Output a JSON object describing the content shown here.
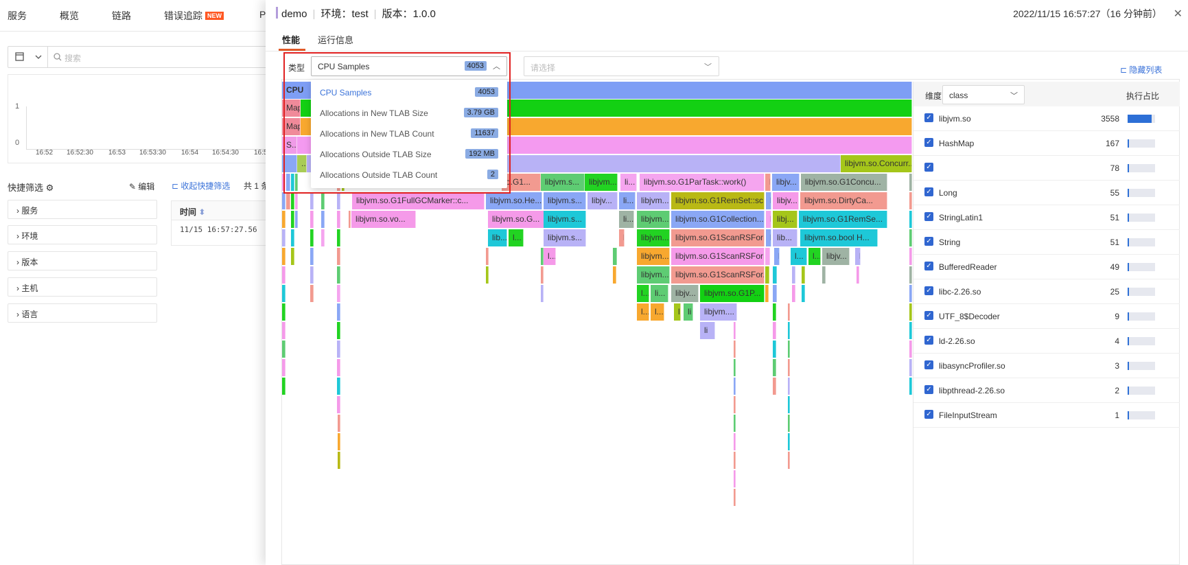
{
  "background": {
    "nav": [
      {
        "label": "服务"
      },
      {
        "label": "概览"
      },
      {
        "label": "链路"
      },
      {
        "label": "错误追踪",
        "badge": "NEW"
      }
    ],
    "nav_cut": "P",
    "search_placeholder": "搜索",
    "chart": {
      "y_ticks": [
        "1",
        "0"
      ],
      "x_ticks": [
        "16:52",
        "16:52:30",
        "16:53",
        "16:53:30",
        "16:54",
        "16:54:30",
        "16:5"
      ]
    },
    "filter_title": "快捷筛选",
    "edit_label": "编辑",
    "collapse_label": "收起快捷筛选",
    "total_label": "共 1 条",
    "accordions": [
      "服务",
      "环境",
      "版本",
      "主机",
      "语言"
    ],
    "table": {
      "header": "时间",
      "row": "11/15 16:57:27.56"
    }
  },
  "drawer": {
    "title_app": "demo",
    "title_env": "环境：test",
    "title_version": "版本：1.0.0",
    "timestamp": "2022/11/15 16:57:27（16 分钟前）",
    "tabs": [
      {
        "label": "性能",
        "active": true
      },
      {
        "label": "运行信息",
        "active": false
      }
    ],
    "type_label": "类型",
    "type_value": "CPU Samples",
    "type_count": "4053",
    "second_placeholder": "请选择",
    "hide_list_label": "隐藏列表",
    "dropdown": [
      {
        "label": "CPU Samples",
        "value": "4053",
        "selected": true
      },
      {
        "label": "Allocations in New TLAB Size",
        "value": "3.79 GB",
        "selected": false
      },
      {
        "label": "Allocations in New TLAB Count",
        "value": "11637",
        "selected": false
      },
      {
        "label": "Allocations Outside TLAB Size",
        "value": "192 MB",
        "selected": false
      },
      {
        "label": "Allocations Outside TLAB Count",
        "value": "2",
        "selected": false
      }
    ],
    "flame_labels": {
      "root": "CPU",
      "r1": "MapRe",
      "r2": "MapRe",
      "r3": "S...",
      "r4": "...",
      "concurrent": "libjvm.so.Concurr...",
      "g1": "o.G1...",
      "s1": "libjvm.s...",
      "s2": "libjvm...",
      "li1": "li...",
      "partask": "libjvm.so.G1ParTask::work()",
      "l1": "l",
      "jv1": "libjv...",
      "concu": "libjvm.so.G1Concu...",
      "fullgc": "libjvm.so.G1FullGCMarker::c...",
      "he": "libjvm.so.He...",
      "s3": "libjvm.s...",
      "jv2": "libjv...",
      "li2": "li...",
      "jvm1": "libjvm...",
      "remset": "libjvm.so.G1RemSet::sc...",
      "l2": "l",
      "jv3": "libjv...",
      "dirty": "libjvm.so.DirtyCa...",
      "vo": "libjvm.so.vo...",
      "g2": "libjvm.so.G...",
      "s4": "libjvm.s...",
      "li3": "li...",
      "jvm2": "libjvm...",
      "collection": "libjvm.so.G1Collection...",
      "l3": "l",
      "lj": "libj...",
      "remse": "libjvm.so.G1RemSe...",
      "lib1": "lib...",
      "l4": "l...",
      "s5": "libjvm.s...",
      "l5": "l",
      "jvm3": "libjvm...",
      "scanrs1": "libjvm.so.G1ScanRSForR...",
      "l6": "l",
      "lib2": "lib...",
      "bool": "libjvm.so.bool H...",
      "l7": "l...",
      "jvm4": "libjvm...",
      "scanrs2": "libjvm.so.G1ScanRSForR...",
      "l8": "l",
      "l9": "l...",
      "lj2": "l...",
      "jv4": "libjv...",
      "l10": "l",
      "jvm5": "libjvm...",
      "scanrs3": "libjvm.so.G1ScanRSFor...",
      "l11": "l...",
      "li4": "li...",
      "jv5": "libjv...",
      "g1p": "libjvm.so.G1P...",
      "l12": "l...",
      "l13": "l...",
      "l14": "l",
      "l15": "li",
      "jvm6": "libjvm....",
      "l16": "li"
    },
    "dimension_label": "维度",
    "dimension_value": "class",
    "ratio_label": "执行占比",
    "classes": [
      {
        "name": "libjvm.so",
        "count": "3558",
        "ratio": 0.878
      },
      {
        "name": "HashMap",
        "count": "167",
        "ratio": 0.041
      },
      {
        "name": "",
        "count": "78",
        "ratio": 0.019
      },
      {
        "name": "Long",
        "count": "55",
        "ratio": 0.014
      },
      {
        "name": "StringLatin1",
        "count": "51",
        "ratio": 0.013
      },
      {
        "name": "String",
        "count": "51",
        "ratio": 0.013
      },
      {
        "name": "BufferedReader",
        "count": "49",
        "ratio": 0.012
      },
      {
        "name": "libc-2.26.so",
        "count": "25",
        "ratio": 0.006
      },
      {
        "name": "UTF_8$Decoder",
        "count": "9",
        "ratio": 0.002
      },
      {
        "name": "ld-2.26.so",
        "count": "4",
        "ratio": 0.001
      },
      {
        "name": "libasyncProfiler.so",
        "count": "3",
        "ratio": 0.001
      },
      {
        "name": "libpthread-2.26.so",
        "count": "2",
        "ratio": 0.0005
      },
      {
        "name": "FileInputStream",
        "count": "1",
        "ratio": 0.0002
      }
    ],
    "colors": {
      "accent": "#3a72d9",
      "tab_ink": "#e05a28",
      "highlight_box": "#e02020",
      "count_badge": "#8aabe3"
    }
  }
}
